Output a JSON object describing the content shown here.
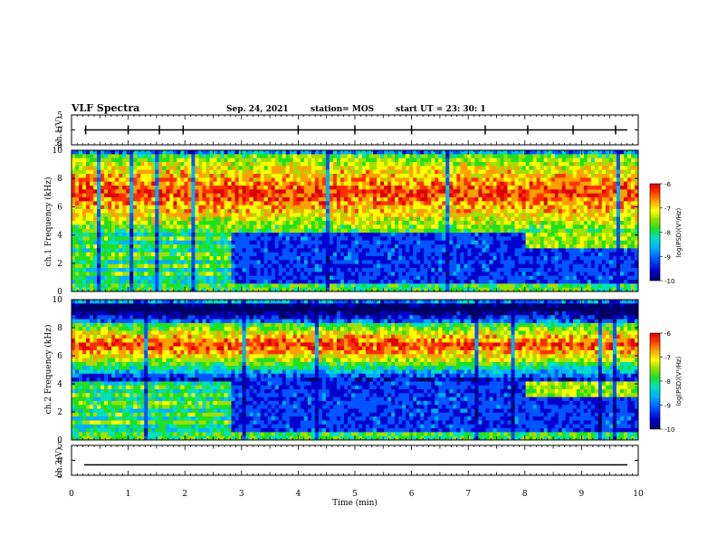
{
  "header": {
    "title": "VLF Spectra",
    "date": "Sep. 24, 2021",
    "station": "station= MOS",
    "start_time": "start  UT =   23: 30: 1"
  },
  "colors": {
    "spectrogram_scale": [
      "#000066",
      "#0000cc",
      "#0055ff",
      "#00b0ff",
      "#00e0c0",
      "#20e020",
      "#a0e000",
      "#ffff00",
      "#ffa000",
      "#ff3000",
      "#dd0000"
    ],
    "background": "#ffffff",
    "axis": "#000000"
  },
  "chart_data": [
    {
      "type": "line",
      "panel": "ch1-waveform",
      "ylabel": "ch.1(V)",
      "ylim": [
        -5,
        5
      ],
      "yticks": [
        "5",
        "0",
        "-5"
      ],
      "xlim": [
        0,
        10
      ],
      "baseline_value": 0,
      "spike_times_min": [
        0.25,
        1.0,
        1.55,
        1.97,
        4.0,
        5.0,
        6.0,
        7.3,
        8.05,
        8.85,
        9.6
      ]
    },
    {
      "type": "heatmap",
      "panel": "ch1-spectrogram",
      "ylabel": "ch.1  Frequency (kHz)",
      "ylim": [
        0,
        10
      ],
      "yticks": [
        "0",
        "2",
        "4",
        "6",
        "8",
        "10"
      ],
      "xlim": [
        0,
        10
      ],
      "color_scale_label": "log(PSD)(V²/Hz)",
      "color_ticks": [
        "-6",
        "-7",
        "-8",
        "-9",
        "-10"
      ],
      "peak_band_khz": [
        4.5,
        9.5
      ],
      "quiet_band_after_min": 2.8
    },
    {
      "type": "heatmap",
      "panel": "ch2-spectrogram",
      "ylabel": "ch.2  Frequency (kHz)",
      "ylim": [
        0,
        10
      ],
      "yticks": [
        "0",
        "2",
        "4",
        "6",
        "8",
        "10"
      ],
      "xlim": [
        0,
        10
      ],
      "color_scale_label": "log(PSD)(V²/Hz)",
      "color_ticks": [
        "-6",
        "-7",
        "-8",
        "-9",
        "-10"
      ],
      "peak_band_khz": [
        5.5,
        8.0
      ],
      "quiet_band_after_min": 2.8
    },
    {
      "type": "line",
      "panel": "ch3-waveform",
      "ylabel": "ch.3(V)",
      "ylim": [
        -5,
        5
      ],
      "yticks": [
        "5",
        "0",
        "-5"
      ],
      "xlim": [
        0,
        10
      ],
      "baseline_value": -1.5
    }
  ],
  "xaxis": {
    "label": "Time (min)",
    "ticks": [
      "0",
      "1",
      "2",
      "3",
      "4",
      "5",
      "6",
      "7",
      "8",
      "9",
      "10"
    ]
  }
}
